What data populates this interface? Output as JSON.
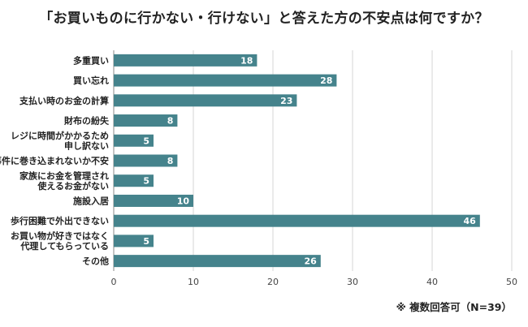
{
  "title": "「お買いものに行かない・行けない」と答えた方の不安点は何ですか？",
  "footnote": "※ 複数回答可（N=39）",
  "colors": {
    "bar": "#45838c",
    "grid": "#d6d6d6",
    "axis": "#888888"
  },
  "chart_data": {
    "type": "bar",
    "orientation": "horizontal",
    "categories": [
      [
        "多重買い"
      ],
      [
        "買い忘れ"
      ],
      [
        "支払い時のお金の計算"
      ],
      [
        "財布の紛失"
      ],
      [
        "レジに時間がかかるため",
        "申し訳ない"
      ],
      [
        "事件に巻き込まれないか不安"
      ],
      [
        "家族にお金を管理され",
        "使えるお金がない"
      ],
      [
        "施設入居"
      ],
      [
        "歩行困難で外出できない"
      ],
      [
        "お買い物が好きではなく",
        "代理してもらっている"
      ],
      [
        "その他"
      ]
    ],
    "values": [
      18,
      28,
      23,
      8,
      5,
      8,
      5,
      10,
      46,
      5,
      26
    ],
    "xlim": [
      0,
      50
    ],
    "xticks": [
      0,
      10,
      20,
      30,
      40,
      50
    ],
    "grid": true,
    "data_labels": true
  }
}
